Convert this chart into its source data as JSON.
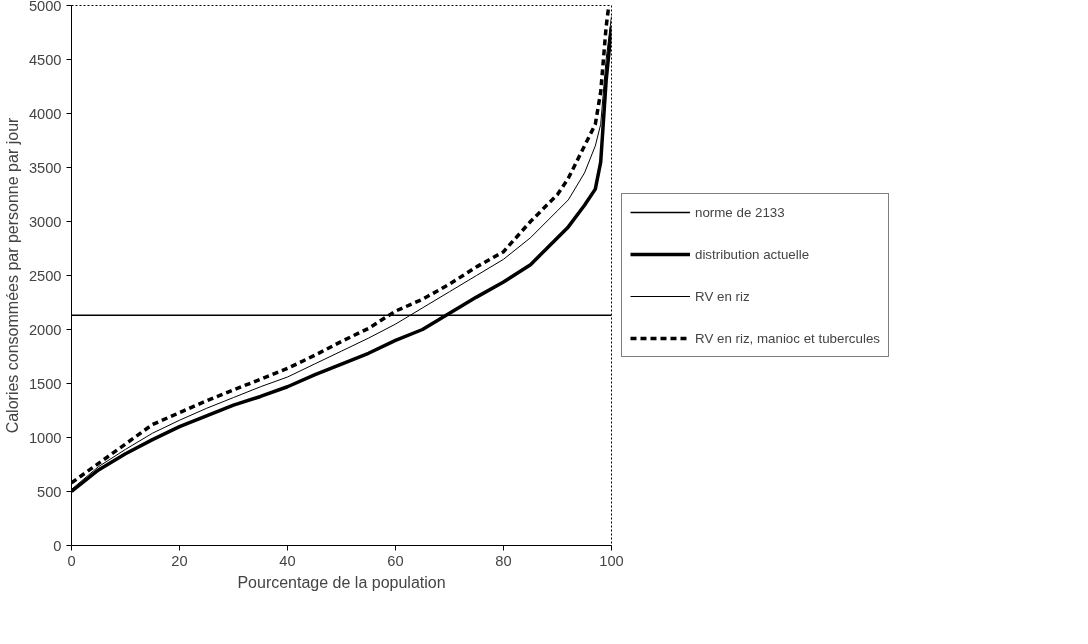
{
  "chart_data": {
    "type": "line",
    "xlabel": "Pourcentage de la population",
    "ylabel": "Calories consommées par personne par jour",
    "xlim": [
      0,
      100
    ],
    "ylim": [
      0,
      5000
    ],
    "xticks": [
      0,
      20,
      40,
      60,
      80,
      100
    ],
    "yticks": [
      0,
      500,
      1000,
      1500,
      2000,
      2500,
      3000,
      3500,
      4000,
      4500,
      5000
    ],
    "grid": false,
    "legend": "right",
    "marker": "none",
    "series": [
      {
        "name": "norme de 2133",
        "color": "#000000",
        "x": [
          0,
          100
        ],
        "values": [
          2133,
          2133
        ]
      },
      {
        "name": "distribution actuelle",
        "color": "#000000",
        "x": [
          0,
          5,
          10,
          15,
          20,
          25,
          30,
          35,
          40,
          45,
          50,
          55,
          60,
          65,
          70,
          75,
          80,
          85,
          90,
          92,
          95,
          97,
          98,
          99,
          100
        ],
        "values": [
          500,
          700,
          850,
          980,
          1100,
          1200,
          1300,
          1380,
          1470,
          1580,
          1680,
          1780,
          1900,
          2000,
          2150,
          2300,
          2440,
          2600,
          2850,
          2950,
          3150,
          3300,
          3550,
          4300,
          4800
        ]
      },
      {
        "name": "RV en riz",
        "color": "#000000",
        "x": [
          0,
          5,
          10,
          15,
          20,
          25,
          30,
          35,
          40,
          45,
          50,
          55,
          60,
          65,
          70,
          75,
          80,
          85,
          90,
          92,
          95,
          97,
          98,
          99,
          100
        ],
        "values": [
          520,
          730,
          890,
          1040,
          1160,
          1270,
          1370,
          1470,
          1560,
          1680,
          1800,
          1920,
          2050,
          2200,
          2350,
          2500,
          2650,
          2850,
          3100,
          3200,
          3450,
          3700,
          3900,
          4500,
          4900
        ]
      },
      {
        "name": "RV en riz, manioc et tubercules",
        "color": "#000000",
        "line_style": "dashed",
        "x": [
          0,
          5,
          10,
          15,
          20,
          25,
          30,
          35,
          40,
          45,
          50,
          55,
          60,
          65,
          70,
          75,
          80,
          85,
          90,
          92,
          95,
          97,
          98,
          99,
          99.5
        ],
        "values": [
          580,
          760,
          940,
          1120,
          1230,
          1340,
          1440,
          1540,
          1640,
          1760,
          1890,
          2010,
          2170,
          2280,
          2420,
          2580,
          2720,
          3000,
          3250,
          3400,
          3700,
          3900,
          4200,
          4800,
          5000
        ]
      }
    ]
  }
}
